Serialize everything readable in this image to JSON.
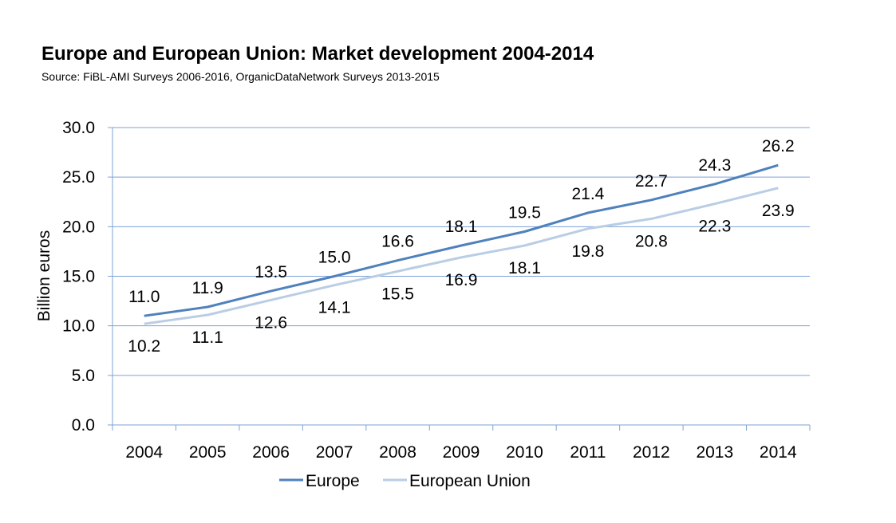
{
  "header": {
    "title": "Europe and European Union: Market development 2004-2014",
    "subtitle": "Source: FiBL-AMI Surveys 2006-2016, OrganicDataNetwork Surveys 2013-2015"
  },
  "chart_data": {
    "type": "line",
    "title": "Europe and European Union: Market development 2004-2014",
    "subtitle": "Source: FiBL-AMI Surveys 2006-2016, OrganicDataNetwork Surveys 2013-2015",
    "xlabel": "",
    "ylabel": "Billion euros",
    "categories": [
      "2004",
      "2005",
      "2006",
      "2007",
      "2008",
      "2009",
      "2010",
      "2011",
      "2012",
      "2013",
      "2014"
    ],
    "ylim": [
      0,
      30
    ],
    "yticks": [
      "0.0",
      "5.0",
      "10.0",
      "15.0",
      "20.0",
      "25.0",
      "30.0"
    ],
    "grid": true,
    "legend_position": "bottom",
    "series": [
      {
        "name": "Europe",
        "color": "#4F81BD",
        "values": [
          11.0,
          11.9,
          13.5,
          15.0,
          16.6,
          18.1,
          19.5,
          21.4,
          22.7,
          24.3,
          26.2
        ],
        "labels": [
          "11.0",
          "11.9",
          "13.5",
          "15.0",
          "16.6",
          "18.1",
          "19.5",
          "21.4",
          "22.7",
          "24.3",
          "26.2"
        ],
        "label_position": "above"
      },
      {
        "name": "European Union",
        "color": "#B9CDE5",
        "values": [
          10.2,
          11.1,
          12.6,
          14.1,
          15.5,
          16.9,
          18.1,
          19.8,
          20.8,
          22.3,
          23.9
        ],
        "labels": [
          "10.2",
          "11.1",
          "12.6",
          "14.1",
          "15.5",
          "16.9",
          "18.1",
          "19.8",
          "20.8",
          "22.3",
          "23.9"
        ],
        "label_position": "below"
      }
    ],
    "colors": {
      "gridline": "#7BA3D4",
      "axis": "#7BA3D4"
    }
  }
}
